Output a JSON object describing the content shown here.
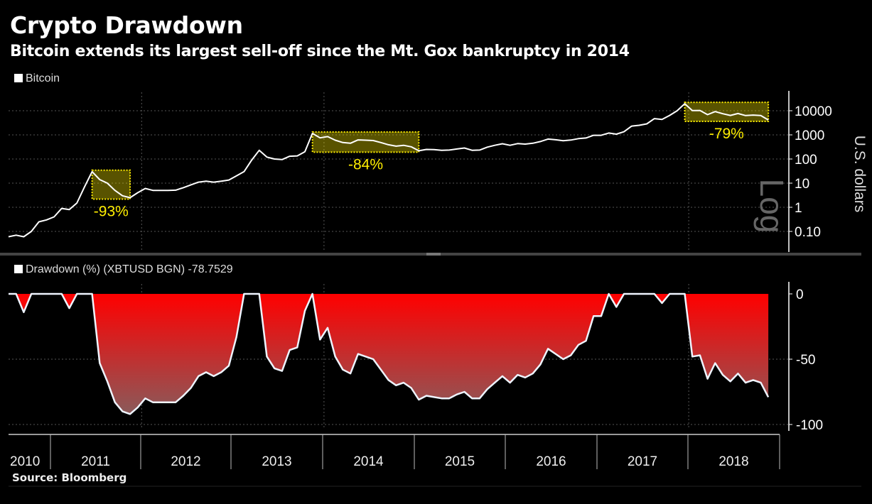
{
  "title": "Crypto Drawdown",
  "subtitle": "Bitcoin extends its largest sell-off since the Mt. Gox bankruptcy in 2014",
  "source": "Source: Bloomberg",
  "colors": {
    "background": "#000000",
    "price_line": "#ffffff",
    "annotation": "#ffee00",
    "drawdown_top": "#ff0000",
    "drawdown_bottom": "#8a5a5a",
    "drawdown_line": "#eef4ff"
  },
  "chart_data": [
    {
      "type": "line",
      "legend": "Bitcoin",
      "ylabel": "U.S. dollars",
      "scale_watermark": "Log",
      "yscale": "log",
      "ylim": [
        0.05,
        20000
      ],
      "yticks": [
        0.1,
        1,
        10,
        100,
        1000,
        10000
      ],
      "ytick_labels": [
        "0.10",
        "1",
        "10",
        "100",
        "1000",
        "10000"
      ],
      "grid": true,
      "annotations": [
        {
          "label": "-93%",
          "from": "2011-06",
          "to": "2011-11"
        },
        {
          "label": "-84%",
          "from": "2013-11",
          "to": "2015-01"
        },
        {
          "label": "-79%",
          "from": "2017-12",
          "to": "2018-11"
        }
      ],
      "x": [
        "2010-07",
        "2010-08",
        "2010-09",
        "2010-10",
        "2010-11",
        "2010-12",
        "2011-01",
        "2011-02",
        "2011-03",
        "2011-04",
        "2011-05",
        "2011-06",
        "2011-07",
        "2011-08",
        "2011-09",
        "2011-10",
        "2011-11",
        "2011-12",
        "2012-01",
        "2012-02",
        "2012-03",
        "2012-04",
        "2012-05",
        "2012-06",
        "2012-07",
        "2012-08",
        "2012-09",
        "2012-10",
        "2012-11",
        "2012-12",
        "2013-01",
        "2013-02",
        "2013-03",
        "2013-04",
        "2013-05",
        "2013-06",
        "2013-07",
        "2013-08",
        "2013-09",
        "2013-10",
        "2013-11",
        "2013-12",
        "2014-01",
        "2014-02",
        "2014-03",
        "2014-04",
        "2014-05",
        "2014-06",
        "2014-07",
        "2014-08",
        "2014-09",
        "2014-10",
        "2014-11",
        "2014-12",
        "2015-01",
        "2015-02",
        "2015-03",
        "2015-04",
        "2015-05",
        "2015-06",
        "2015-07",
        "2015-08",
        "2015-09",
        "2015-10",
        "2015-11",
        "2015-12",
        "2016-01",
        "2016-02",
        "2016-03",
        "2016-04",
        "2016-05",
        "2016-06",
        "2016-07",
        "2016-08",
        "2016-09",
        "2016-10",
        "2016-11",
        "2016-12",
        "2017-01",
        "2017-02",
        "2017-03",
        "2017-04",
        "2017-05",
        "2017-06",
        "2017-07",
        "2017-08",
        "2017-09",
        "2017-10",
        "2017-11",
        "2017-12",
        "2018-01",
        "2018-02",
        "2018-03",
        "2018-04",
        "2018-05",
        "2018-06",
        "2018-07",
        "2018-08",
        "2018-09",
        "2018-10",
        "2018-11"
      ],
      "values": [
        0.06,
        0.07,
        0.06,
        0.1,
        0.25,
        0.3,
        0.4,
        0.9,
        0.8,
        1.5,
        7,
        30,
        14,
        10,
        5,
        3,
        2.5,
        4,
        6,
        5,
        5,
        5,
        5.1,
        6.5,
        8.5,
        11,
        12,
        11,
        12,
        13.5,
        20,
        30,
        90,
        230,
        120,
        100,
        95,
        130,
        135,
        200,
        1150,
        750,
        850,
        600,
        480,
        450,
        620,
        600,
        580,
        480,
        390,
        340,
        370,
        320,
        220,
        250,
        245,
        230,
        235,
        260,
        285,
        230,
        235,
        310,
        370,
        430,
        370,
        435,
        415,
        450,
        530,
        670,
        625,
        575,
        610,
        700,
        740,
        960,
        960,
        1190,
        1070,
        1350,
        2300,
        2500,
        2850,
        4700,
        4350,
        6400,
        10000,
        19500,
        10200,
        10300,
        6900,
        9200,
        7500,
        6400,
        7700,
        6300,
        6600,
        6300,
        4150
      ]
    },
    {
      "type": "area",
      "legend": "Drawdown (%) (XBTUSD BGN) -78.7529",
      "ylim": [
        -100,
        0
      ],
      "yticks": [
        0,
        -50,
        -100
      ],
      "ytick_labels": [
        "0",
        "-50",
        "-100"
      ],
      "grid": true,
      "x_ref": "same as Bitcoin series",
      "values": [
        0,
        0,
        -14,
        0,
        0,
        0,
        0,
        0,
        -11,
        0,
        0,
        0,
        -53,
        -67,
        -83,
        -90,
        -92,
        -87,
        -80,
        -83,
        -83,
        -83,
        -83,
        -78,
        -72,
        -63,
        -60,
        -63,
        -60,
        -55,
        -33,
        0,
        0,
        0,
        -48,
        -57,
        -59,
        -43,
        -41,
        -13,
        0,
        -35,
        -26,
        -48,
        -58,
        -61,
        -46,
        -48,
        -50,
        -58,
        -66,
        -70,
        -68,
        -72,
        -81,
        -78,
        -79,
        -80,
        -80,
        -77,
        -75,
        -80,
        -80,
        -73,
        -68,
        -63,
        -68,
        -62,
        -64,
        -61,
        -54,
        -42,
        -46,
        -50,
        -47,
        -39,
        -36,
        -17,
        -17,
        0,
        -10,
        0,
        0,
        0,
        0,
        0,
        -7,
        0,
        0,
        0,
        -48,
        -47,
        -65,
        -53,
        -62,
        -67,
        -61,
        -68,
        -66,
        -68,
        -79
      ]
    }
  ],
  "xaxis": {
    "labels": [
      "2010",
      "2011",
      "2012",
      "2013",
      "2014",
      "2015",
      "2016",
      "2017",
      "2018"
    ]
  }
}
